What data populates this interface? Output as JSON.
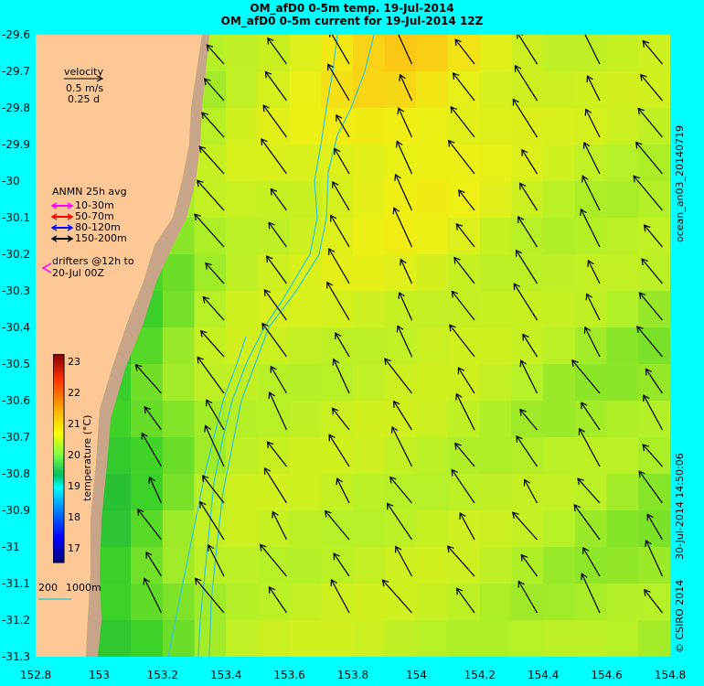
{
  "titles": {
    "line1": "OM_afD0 0-5m temp. 19-Jul-2014",
    "line2": "OM_afD0 0-5m current for 19-Jul-2014 12Z"
  },
  "axes": {
    "y_ticks": [
      "-29.6",
      "-29.7",
      "-29.8",
      "-29.9",
      "-30",
      "-30.1",
      "-30.2",
      "-30.3",
      "-30.4",
      "-30.5",
      "-30.6",
      "-30.7",
      "-30.8",
      "-30.9",
      "-31",
      "-31.1",
      "-31.2",
      "-31.3"
    ],
    "x_ticks": [
      "152.8",
      "153",
      "153.2",
      "153.4",
      "153.6",
      "153.8",
      "154",
      "154.2",
      "154.4",
      "154.6",
      "154.8"
    ]
  },
  "velocity_legend": {
    "title": "velocity",
    "speed": "0.5 m/s",
    "days": "0.25 d"
  },
  "anmn_legend": {
    "title": "ANMN 25h avg",
    "items": [
      {
        "label": "10-30m",
        "color": "#ff00ff"
      },
      {
        "label": "50-70m",
        "color": "#ff0000"
      },
      {
        "label": "80-120m",
        "color": "#0000ff"
      },
      {
        "label": "150-200m",
        "color": "#000000"
      }
    ]
  },
  "drifters": {
    "line1": "drifters @12h to",
    "line2": "20-Jul 00Z",
    "color": "#ff00ff"
  },
  "colorbar": {
    "label": "temperature (°C)",
    "ticks": [
      "23",
      "22",
      "21",
      "20",
      "19",
      "18",
      "17"
    ],
    "range": [
      16.6,
      23.4
    ]
  },
  "depth_legend": {
    "shallow": "200",
    "deep": "1000m"
  },
  "right_labels": {
    "run_id": "ocean_an03_20140719",
    "timestamp": "30-Jul-2014 14:50:06",
    "copyright": "© CSIRO 2014"
  },
  "colors": {
    "land": "#fdc896",
    "shelf": "#c8a488",
    "background": "#00ffff",
    "isobath": "#40c8c8",
    "arrow": "#000000"
  }
}
